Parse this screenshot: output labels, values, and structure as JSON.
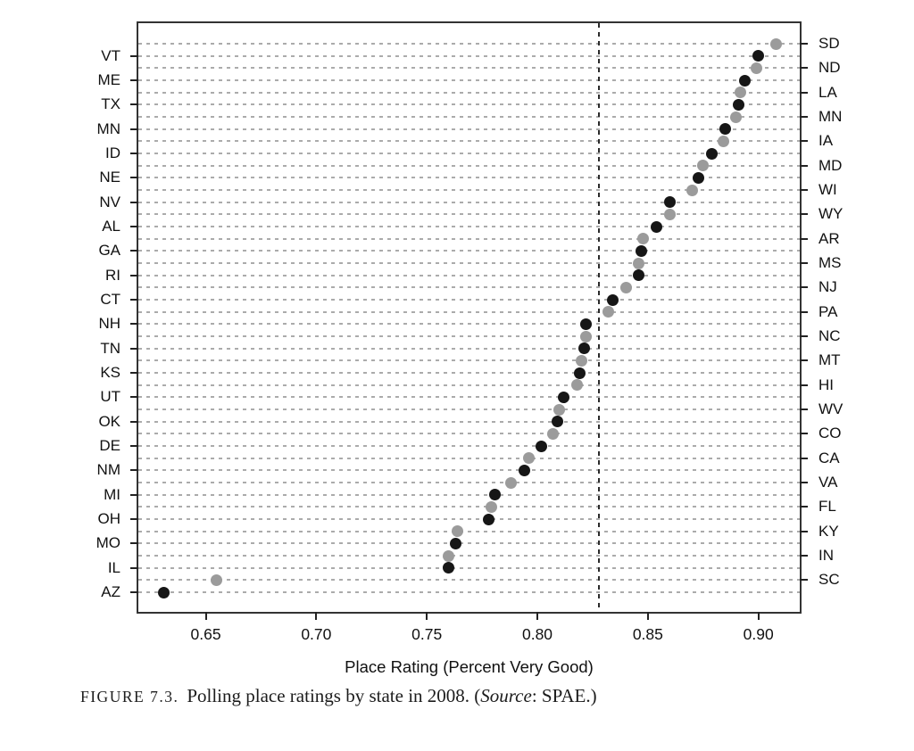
{
  "caption": {
    "figure_label": "FIGURE 7.3.",
    "text": "Polling place ratings by state in 2008. (",
    "source_word": "Source",
    "source_suffix": ": SPAE.)"
  },
  "chart_data": {
    "type": "scatter",
    "subtype": "cleveland-dot-plot",
    "title": "",
    "xlabel": "Place Rating (Percent Very Good)",
    "ylabel": "",
    "xlim": [
      0.6195,
      0.9187
    ],
    "grid": "horizontal-dashed",
    "reference_line": {
      "value": 0.828,
      "style": "vertical-dashed"
    },
    "dot_colors": {
      "left": "#161616",
      "right": "#9b9b9b"
    },
    "x_ticks": [
      {
        "value": 0.65,
        "label": "0.65"
      },
      {
        "value": 0.7,
        "label": "0.70"
      },
      {
        "value": 0.75,
        "label": "0.75"
      },
      {
        "value": 0.8,
        "label": "0.80"
      },
      {
        "value": 0.85,
        "label": "0.85"
      },
      {
        "value": 0.9,
        "label": "0.90"
      }
    ],
    "rows": [
      {
        "state": "SD",
        "value": 0.908,
        "side": "right"
      },
      {
        "state": "VT",
        "value": 0.9,
        "side": "left"
      },
      {
        "state": "ND",
        "value": 0.899,
        "side": "right"
      },
      {
        "state": "ME",
        "value": 0.894,
        "side": "left"
      },
      {
        "state": "LA",
        "value": 0.892,
        "side": "right"
      },
      {
        "state": "TX",
        "value": 0.891,
        "side": "left"
      },
      {
        "state": "MN",
        "value": 0.89,
        "side": "right"
      },
      {
        "state": "MN",
        "value": 0.885,
        "side": "left"
      },
      {
        "state": "IA",
        "value": 0.884,
        "side": "right"
      },
      {
        "state": "ID",
        "value": 0.879,
        "side": "left"
      },
      {
        "state": "MD",
        "value": 0.875,
        "side": "right"
      },
      {
        "state": "NE",
        "value": 0.873,
        "side": "left"
      },
      {
        "state": "WI",
        "value": 0.87,
        "side": "right"
      },
      {
        "state": "NV",
        "value": 0.86,
        "side": "left"
      },
      {
        "state": "WY",
        "value": 0.86,
        "side": "right"
      },
      {
        "state": "AL",
        "value": 0.854,
        "side": "left"
      },
      {
        "state": "AR",
        "value": 0.848,
        "side": "right"
      },
      {
        "state": "GA",
        "value": 0.847,
        "side": "left"
      },
      {
        "state": "MS",
        "value": 0.846,
        "side": "right"
      },
      {
        "state": "RI",
        "value": 0.846,
        "side": "left"
      },
      {
        "state": "NJ",
        "value": 0.84,
        "side": "right"
      },
      {
        "state": "CT",
        "value": 0.834,
        "side": "left"
      },
      {
        "state": "PA",
        "value": 0.832,
        "side": "right"
      },
      {
        "state": "NH",
        "value": 0.822,
        "side": "left"
      },
      {
        "state": "NC",
        "value": 0.822,
        "side": "right"
      },
      {
        "state": "TN",
        "value": 0.821,
        "side": "left"
      },
      {
        "state": "MT",
        "value": 0.82,
        "side": "right"
      },
      {
        "state": "KS",
        "value": 0.819,
        "side": "left"
      },
      {
        "state": "HI",
        "value": 0.818,
        "side": "right"
      },
      {
        "state": "UT",
        "value": 0.812,
        "side": "left"
      },
      {
        "state": "WV",
        "value": 0.81,
        "side": "right"
      },
      {
        "state": "OK",
        "value": 0.809,
        "side": "left"
      },
      {
        "state": "CO",
        "value": 0.807,
        "side": "right"
      },
      {
        "state": "DE",
        "value": 0.802,
        "side": "left"
      },
      {
        "state": "CA",
        "value": 0.796,
        "side": "right"
      },
      {
        "state": "NM",
        "value": 0.794,
        "side": "left"
      },
      {
        "state": "VA",
        "value": 0.788,
        "side": "right"
      },
      {
        "state": "MI",
        "value": 0.781,
        "side": "left"
      },
      {
        "state": "FL",
        "value": 0.779,
        "side": "right"
      },
      {
        "state": "OH",
        "value": 0.778,
        "side": "left"
      },
      {
        "state": "KY",
        "value": 0.764,
        "side": "right"
      },
      {
        "state": "MO",
        "value": 0.763,
        "side": "left"
      },
      {
        "state": "IN",
        "value": 0.76,
        "side": "right"
      },
      {
        "state": "IL",
        "value": 0.76,
        "side": "left"
      },
      {
        "state": "SC",
        "value": 0.655,
        "side": "right"
      },
      {
        "state": "AZ",
        "value": 0.631,
        "side": "left"
      }
    ]
  }
}
